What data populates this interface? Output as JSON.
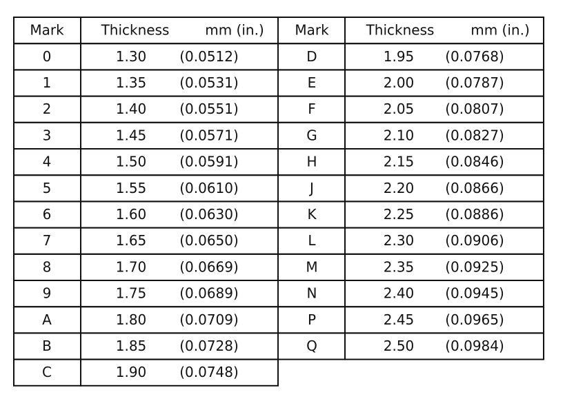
{
  "tables": [
    {
      "header": [
        "Mark",
        "Thickness",
        "mm (in.)"
      ],
      "rows": [
        [
          "0",
          "1.30",
          "(0.0512)"
        ],
        [
          "1",
          "1.35",
          "(0.0531)"
        ],
        [
          "2",
          "1.40",
          "(0.0551)"
        ],
        [
          "3",
          "1.45",
          "(0.0571)"
        ],
        [
          "4",
          "1.50",
          "(0.0591)"
        ],
        [
          "5",
          "1.55",
          "(0.0610)"
        ],
        [
          "6",
          "1.60",
          "(0.0630)"
        ],
        [
          "7",
          "1.65",
          "(0.0650)"
        ],
        [
          "8",
          "1.70",
          "(0.0669)"
        ],
        [
          "9",
          "1.75",
          "(0.0689)"
        ],
        [
          "A",
          "1.80",
          "(0.0709)"
        ],
        [
          "B",
          "1.85",
          "(0.0728)"
        ],
        [
          "C",
          "1.90",
          "(0.0748)"
        ]
      ]
    },
    {
      "header": [
        "Mark",
        "Thickness",
        "mm (in.)"
      ],
      "rows": [
        [
          "D",
          "1.95",
          "(0.0768)"
        ],
        [
          "E",
          "2.00",
          "(0.0787)"
        ],
        [
          "F",
          "2.05",
          "(0.0807)"
        ],
        [
          "G",
          "2.10",
          "(0.0827)"
        ],
        [
          "H",
          "2.15",
          "(0.0846)"
        ],
        [
          "J",
          "2.20",
          "(0.0866)"
        ],
        [
          "K",
          "2.25",
          "(0.0886)"
        ],
        [
          "L",
          "2.30",
          "(0.0906)"
        ],
        [
          "M",
          "2.35",
          "(0.0925)"
        ],
        [
          "N",
          "2.40",
          "(0.0945)"
        ],
        [
          "P",
          "2.45",
          "(0.0965)"
        ],
        [
          "Q",
          "2.50",
          "(0.0984)"
        ]
      ]
    }
  ]
}
